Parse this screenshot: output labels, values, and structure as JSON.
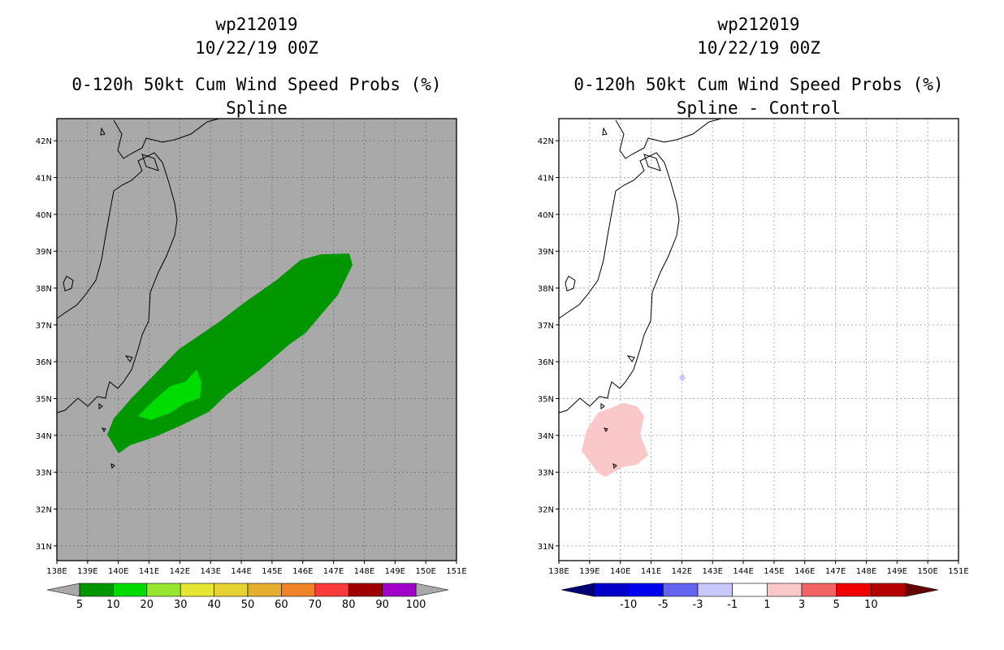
{
  "chart_data": [
    {
      "type": "heatmap",
      "panel": "left",
      "title_lines": [
        "wp212019",
        "10/22/19 00Z",
        "0-120h 50kt Cum Wind Speed Probs (%)",
        "Spline"
      ],
      "xlim": [
        138,
        151
      ],
      "ylim": [
        30.6,
        42.6
      ],
      "x_ticks": [
        "138E",
        "139E",
        "140E",
        "141E",
        "142E",
        "143E",
        "144E",
        "145E",
        "146E",
        "147E",
        "148E",
        "149E",
        "150E",
        "151E"
      ],
      "y_ticks": [
        "31N",
        "32N",
        "33N",
        "34N",
        "35N",
        "36N",
        "37N",
        "38N",
        "39N",
        "40N",
        "41N",
        "42N"
      ],
      "grid": true,
      "background_color": "#a9a9a9",
      "regions": [
        {
          "level": "5-10",
          "color": "#009600",
          "description": "elongated swath from about 139.5E 33.5N to 147.5E 38.7N"
        },
        {
          "level": "10-20",
          "color": "#00dc00",
          "description": "small core near 141.5E-142.5E, 34.5N-35.6N"
        }
      ],
      "colorbar": {
        "labels": [
          "5",
          "10",
          "20",
          "30",
          "40",
          "50",
          "60",
          "70",
          "80",
          "90",
          "100"
        ],
        "colors": [
          "#009600",
          "#00dc00",
          "#96e632",
          "#e6e632",
          "#e6d232",
          "#e6af2d",
          "#f08228",
          "#fa3c3c",
          "#a00000",
          "#a000c8"
        ],
        "under_color": "#a9a9a9",
        "over_color": "#a9a9a9"
      }
    },
    {
      "type": "heatmap",
      "panel": "right",
      "title_lines": [
        "wp212019",
        "10/22/19 00Z",
        "0-120h 50kt Cum Wind Speed Probs (%)",
        "Spline - Control"
      ],
      "xlim": [
        138,
        151
      ],
      "ylim": [
        30.6,
        42.6
      ],
      "x_ticks": [
        "138E",
        "139E",
        "140E",
        "141E",
        "142E",
        "143E",
        "144E",
        "145E",
        "146E",
        "147E",
        "148E",
        "149E",
        "150E",
        "151E"
      ],
      "y_ticks": [
        "31N",
        "32N",
        "33N",
        "34N",
        "35N",
        "36N",
        "37N",
        "38N",
        "39N",
        "40N",
        "41N",
        "42N"
      ],
      "grid": true,
      "background_color": "#ffffff",
      "regions": [
        {
          "level": "1-3",
          "color": "#fac8c8",
          "description": "patch south of Honshu near 139.3E-140.8E, 32.8N-34.8N"
        },
        {
          "level": "-3--1",
          "color": "#c8c8fa",
          "description": "tiny spot near 142E 35.5N"
        }
      ],
      "colorbar": {
        "labels": [
          "-10",
          "-5",
          "-3",
          "-1",
          "1",
          "3",
          "5",
          "10"
        ],
        "colors": [
          "#0000c8",
          "#0000f0",
          "#6464f0",
          "#c8c8fa",
          "#ffffff",
          "#fac8c8",
          "#f06464",
          "#f00000",
          "#b40000"
        ],
        "under_color": "#000078",
        "over_color": "#640000"
      }
    }
  ]
}
